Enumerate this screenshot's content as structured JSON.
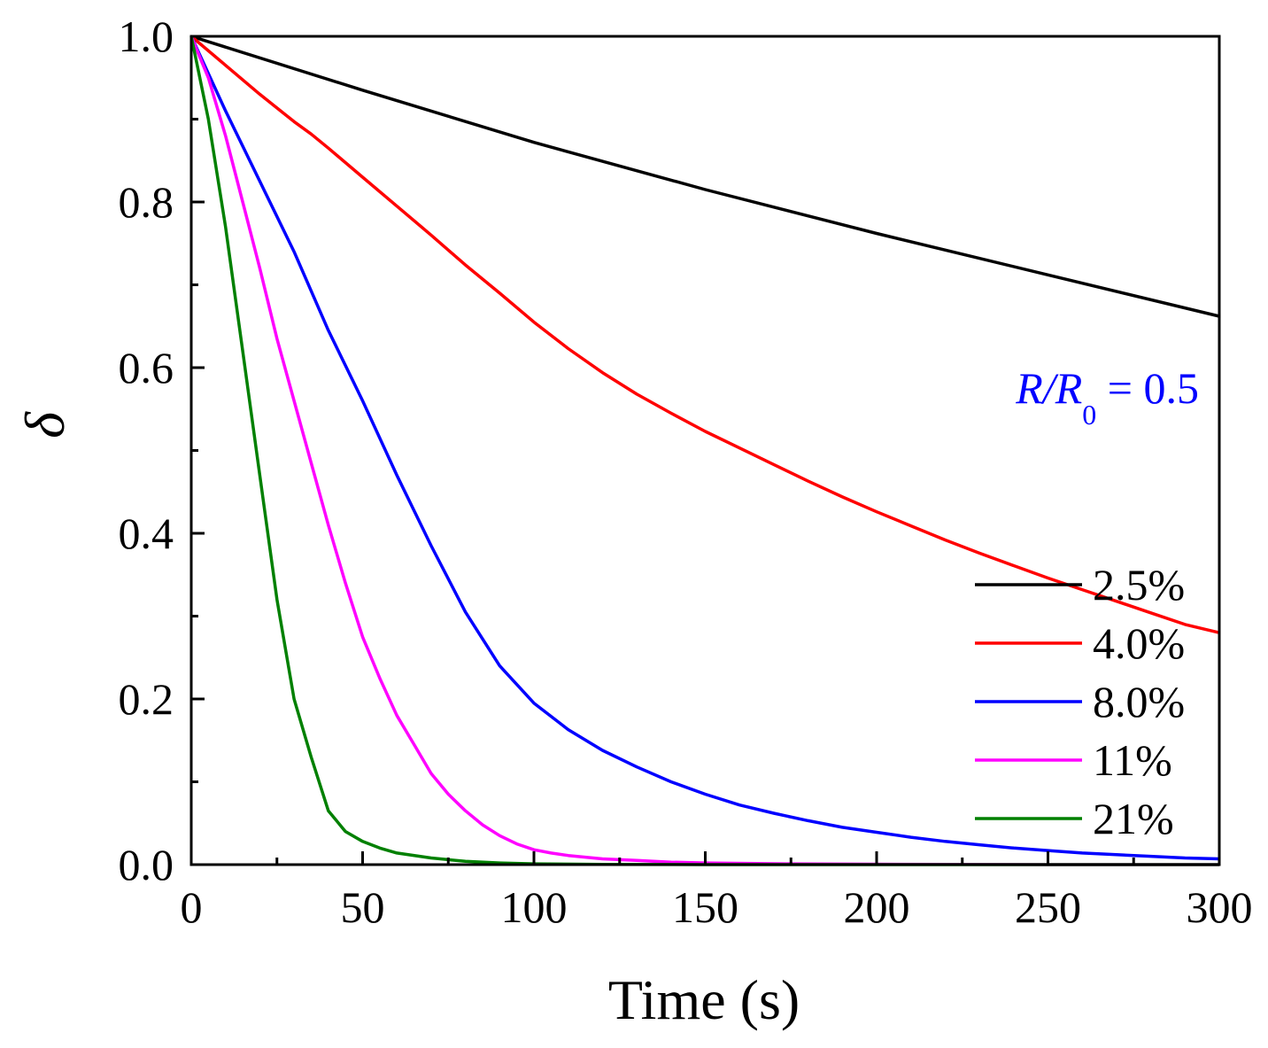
{
  "chart_data": {
    "type": "line",
    "title": "",
    "xlabel": "Time (s)",
    "ylabel": "δ",
    "xlim": [
      0,
      300
    ],
    "ylim": [
      0,
      1.0
    ],
    "xticks": [
      0,
      50,
      100,
      150,
      200,
      250,
      300
    ],
    "xtick_labels": [
      "0",
      "50",
      "100",
      "150",
      "200",
      "250",
      "300"
    ],
    "yticks": [
      0,
      0.2,
      0.4,
      0.6,
      0.8,
      1.0
    ],
    "ytick_labels": [
      "0.0",
      "0.2",
      "0.4",
      "0.6",
      "0.8",
      "1.0"
    ],
    "grid": false,
    "legend_position": "bottom-right",
    "annotation": {
      "var1": "R",
      "slash": "/",
      "var2": "R",
      "subscript": "0",
      "rest": " = 0.5",
      "color": "#0000FF"
    },
    "series": [
      {
        "name": "2.5%",
        "color": "#000000",
        "x": [
          0,
          50,
          100,
          150,
          200,
          250,
          300
        ],
        "y": [
          1.0,
          0.935,
          0.872,
          0.815,
          0.762,
          0.712,
          0.662
        ]
      },
      {
        "name": "4.0%",
        "color": "#FF0000",
        "x": [
          0,
          10,
          20,
          30,
          35,
          40,
          50,
          60,
          70,
          80,
          90,
          100,
          110,
          120,
          130,
          140,
          150,
          160,
          170,
          180,
          190,
          200,
          210,
          220,
          230,
          240,
          250,
          260,
          270,
          280,
          290,
          300
        ],
        "y": [
          1.0,
          0.965,
          0.93,
          0.897,
          0.882,
          0.865,
          0.83,
          0.795,
          0.76,
          0.724,
          0.69,
          0.655,
          0.623,
          0.594,
          0.568,
          0.545,
          0.523,
          0.503,
          0.483,
          0.463,
          0.444,
          0.426,
          0.409,
          0.392,
          0.376,
          0.361,
          0.346,
          0.332,
          0.318,
          0.304,
          0.29,
          0.28
        ]
      },
      {
        "name": "8.0%",
        "color": "#0000FF",
        "x": [
          0,
          10,
          20,
          30,
          40,
          50,
          60,
          70,
          80,
          90,
          100,
          110,
          120,
          130,
          140,
          150,
          160,
          170,
          180,
          190,
          200,
          210,
          220,
          230,
          240,
          250,
          260,
          270,
          280,
          290,
          300
        ],
        "y": [
          1.0,
          0.91,
          0.825,
          0.74,
          0.645,
          0.56,
          0.47,
          0.385,
          0.305,
          0.24,
          0.195,
          0.163,
          0.138,
          0.118,
          0.1,
          0.085,
          0.072,
          0.062,
          0.053,
          0.045,
          0.039,
          0.033,
          0.028,
          0.024,
          0.02,
          0.017,
          0.014,
          0.012,
          0.01,
          0.008,
          0.007
        ]
      },
      {
        "name": "11%",
        "color": "#FF00FF",
        "x": [
          0,
          5,
          10,
          15,
          20,
          25,
          30,
          35,
          40,
          45,
          50,
          55,
          60,
          65,
          70,
          75,
          80,
          85,
          90,
          95,
          100,
          105,
          110,
          120,
          130,
          140,
          150,
          175,
          200,
          250,
          300
        ],
        "y": [
          1.0,
          0.95,
          0.88,
          0.8,
          0.72,
          0.635,
          0.56,
          0.485,
          0.41,
          0.34,
          0.275,
          0.225,
          0.18,
          0.145,
          0.11,
          0.085,
          0.065,
          0.048,
          0.035,
          0.025,
          0.018,
          0.014,
          0.011,
          0.007,
          0.005,
          0.003,
          0.002,
          0.001,
          0.0005,
          0.0,
          0.0
        ]
      },
      {
        "name": "21%",
        "color": "#008000",
        "x": [
          0,
          5,
          10,
          15,
          20,
          25,
          30,
          35,
          40,
          45,
          50,
          55,
          60,
          70,
          80,
          90,
          100,
          120,
          150,
          200,
          250,
          300
        ],
        "y": [
          1.0,
          0.9,
          0.77,
          0.62,
          0.47,
          0.32,
          0.2,
          0.13,
          0.065,
          0.04,
          0.028,
          0.02,
          0.014,
          0.008,
          0.004,
          0.002,
          0.001,
          0.0003,
          0.0,
          0.0,
          0.0,
          0.0
        ]
      }
    ]
  }
}
